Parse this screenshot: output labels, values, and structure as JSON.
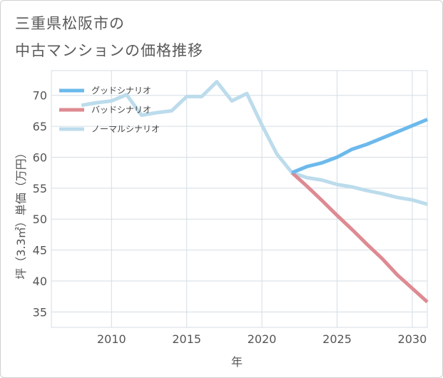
{
  "title_line1": "三重県松阪市の",
  "title_line2": "中古マンションの価格推移",
  "chart_data": {
    "type": "line",
    "xlabel": "年",
    "ylabel": "坪（3.3㎡）単価（万円）",
    "xlim": [
      2006,
      2031
    ],
    "ylim": [
      32.5,
      74
    ],
    "x_ticks": [
      2010,
      2015,
      2020,
      2025,
      2030
    ],
    "y_ticks": [
      35,
      40,
      45,
      50,
      55,
      60,
      65,
      70
    ],
    "grid": true,
    "legend_position": "top-left",
    "series": [
      {
        "name": "グッドシナリオ",
        "color": "#6cb9ec",
        "x": [
          2022,
          2023,
          2024,
          2025,
          2026,
          2027,
          2028,
          2029,
          2030,
          2031
        ],
        "y": [
          57.5,
          58.5,
          59.1,
          60.0,
          61.3,
          62.1,
          63.1,
          64.1,
          65.1,
          66.1
        ]
      },
      {
        "name": "バッドシナリオ",
        "color": "#de8a92",
        "x": [
          2022,
          2023,
          2024,
          2025,
          2026,
          2027,
          2028,
          2029,
          2030,
          2031
        ],
        "y": [
          57.5,
          55.3,
          53.0,
          50.6,
          48.3,
          45.9,
          43.6,
          41.0,
          38.8,
          36.6
        ]
      },
      {
        "name": "ノーマルシナリオ",
        "color": "#bcdcec",
        "x": [
          2008,
          2009,
          2010,
          2011,
          2012,
          2013,
          2014,
          2015,
          2016,
          2017,
          2018,
          2019,
          2020,
          2021,
          2022,
          2023,
          2024,
          2025,
          2026,
          2027,
          2028,
          2029,
          2030,
          2031
        ],
        "y": [
          68.4,
          68.8,
          69.1,
          70.1,
          66.8,
          67.2,
          67.5,
          69.8,
          69.8,
          72.2,
          69.1,
          70.3,
          65.2,
          60.5,
          57.5,
          56.7,
          56.3,
          55.6,
          55.2,
          54.6,
          54.1,
          53.5,
          53.1,
          52.4
        ]
      }
    ]
  }
}
